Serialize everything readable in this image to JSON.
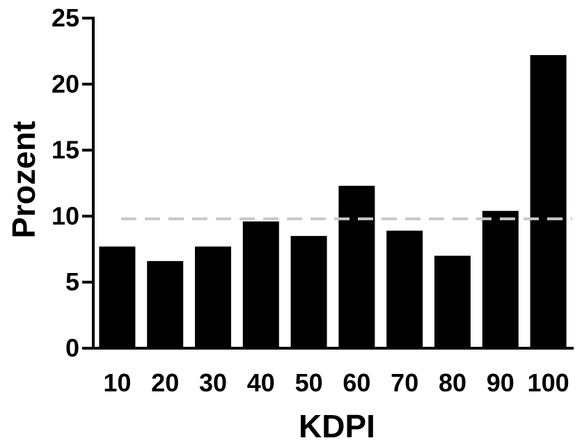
{
  "chart_data": {
    "type": "bar",
    "categories": [
      "10",
      "20",
      "30",
      "40",
      "50",
      "60",
      "70",
      "80",
      "90",
      "100"
    ],
    "values": [
      7.7,
      6.6,
      7.7,
      9.6,
      8.5,
      12.3,
      8.9,
      7.0,
      10.4,
      22.2
    ],
    "xlabel": "KDPI",
    "ylabel": "Prozent",
    "ylim": [
      0,
      25
    ],
    "yticks": [
      0,
      5,
      10,
      15,
      20,
      25
    ],
    "reference_line": {
      "value": 9.8,
      "style": "dashed"
    },
    "grid": false,
    "colors": {
      "bar": "#000000",
      "reference_line": "#c8c8c8",
      "axis": "#000000"
    }
  }
}
